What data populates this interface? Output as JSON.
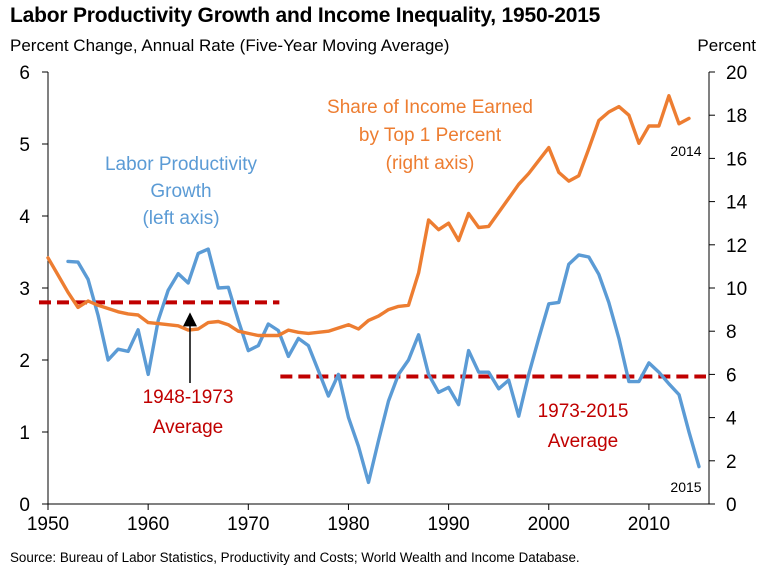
{
  "chart_data": {
    "type": "line",
    "title": "Labor Productivity Growth and Income Inequality, 1950-2015",
    "ylabel_left": "Percent Change, Annual Rate (Five-Year Moving Average)",
    "ylabel_right": "Percent",
    "source": "Source: Bureau of Labor Statistics, Productivity and Costs; World Wealth and Income Database.",
    "xlim": [
      1950,
      2016
    ],
    "ylim_left": [
      0,
      6
    ],
    "ylim_right": [
      0,
      20
    ],
    "x_ticks": [
      1950,
      1960,
      1970,
      1980,
      1990,
      2000,
      2010
    ],
    "left_ticks": [
      0,
      1,
      2,
      3,
      4,
      5,
      6
    ],
    "right_ticks": [
      0,
      2,
      4,
      6,
      8,
      10,
      12,
      14,
      16,
      18,
      20
    ],
    "colors": {
      "productivity": "#5b9bd5",
      "income_share": "#ed7d31",
      "average": "#c00000",
      "annotation": "#c00000"
    },
    "series": [
      {
        "name": "Labor Productivity Growth",
        "label_lines": [
          "Labor Productivity",
          "Growth",
          "(left axis)"
        ],
        "axis": "left",
        "x": [
          1952,
          1953,
          1954,
          1955,
          1956,
          1957,
          1958,
          1959,
          1960,
          1961,
          1962,
          1963,
          1964,
          1965,
          1966,
          1967,
          1968,
          1969,
          1970,
          1971,
          1972,
          1973,
          1974,
          1975,
          1976,
          1977,
          1978,
          1979,
          1980,
          1981,
          1982,
          1983,
          1984,
          1985,
          1986,
          1987,
          1988,
          1989,
          1990,
          1991,
          1992,
          1993,
          1994,
          1995,
          1996,
          1997,
          1998,
          1999,
          2000,
          2001,
          2002,
          2003,
          2004,
          2005,
          2006,
          2007,
          2008,
          2009,
          2010,
          2011,
          2012,
          2013,
          2014,
          2015
        ],
        "y": [
          3.37,
          3.36,
          3.12,
          2.62,
          2.0,
          2.15,
          2.12,
          2.42,
          1.8,
          2.55,
          2.97,
          3.2,
          3.07,
          3.48,
          3.54,
          3.0,
          3.01,
          2.55,
          2.13,
          2.2,
          2.5,
          2.41,
          2.05,
          2.3,
          2.2,
          1.85,
          1.5,
          1.8,
          1.2,
          0.8,
          0.3,
          0.88,
          1.43,
          1.8,
          2.0,
          2.35,
          1.8,
          1.55,
          1.62,
          1.38,
          2.13,
          1.83,
          1.83,
          1.6,
          1.72,
          1.22,
          1.8,
          2.3,
          2.78,
          2.8,
          3.33,
          3.46,
          3.43,
          3.19,
          2.8,
          2.3,
          1.7,
          1.7,
          1.96,
          1.83,
          1.67,
          1.52,
          1.0,
          0.52
        ]
      },
      {
        "name": "Share of Income Earned by Top 1 Percent",
        "label_lines": [
          "Share of Income Earned",
          "by Top 1 Percent",
          "(right axis)"
        ],
        "axis": "right",
        "x": [
          1950,
          1951,
          1952,
          1953,
          1954,
          1955,
          1956,
          1957,
          1958,
          1959,
          1960,
          1961,
          1962,
          1963,
          1964,
          1965,
          1966,
          1967,
          1968,
          1969,
          1970,
          1971,
          1972,
          1973,
          1974,
          1975,
          1976,
          1977,
          1978,
          1979,
          1980,
          1981,
          1982,
          1983,
          1984,
          1985,
          1986,
          1987,
          1988,
          1989,
          1990,
          1991,
          1992,
          1993,
          1994,
          1995,
          1996,
          1997,
          1998,
          1999,
          2000,
          2001,
          2002,
          2003,
          2004,
          2005,
          2006,
          2007,
          2008,
          2009,
          2010,
          2011,
          2012,
          2013,
          2014
        ],
        "y": [
          11.4,
          10.6,
          9.8,
          9.1,
          9.4,
          9.2,
          9.05,
          8.9,
          8.8,
          8.75,
          8.4,
          8.35,
          8.3,
          8.25,
          8.05,
          8.1,
          8.4,
          8.45,
          8.3,
          8.0,
          7.9,
          7.8,
          7.8,
          7.8,
          8.05,
          7.95,
          7.9,
          7.95,
          8.0,
          8.15,
          8.3,
          8.1,
          8.5,
          8.7,
          9.0,
          9.15,
          9.2,
          10.7,
          13.15,
          12.7,
          13.0,
          12.2,
          13.45,
          12.8,
          12.85,
          13.5,
          14.15,
          14.8,
          15.3,
          15.9,
          16.5,
          15.35,
          14.95,
          15.2,
          16.45,
          17.75,
          18.15,
          18.4,
          18.0,
          16.7,
          17.5,
          17.5,
          18.9,
          17.6,
          17.85
        ]
      }
    ],
    "averages": [
      {
        "name": "1948-1973 Average",
        "label_lines": [
          "1948-1973",
          "Average"
        ],
        "x_start": 1949.1,
        "x_end": 1973.1,
        "value": 2.8
      },
      {
        "name": "1973-2015 Average",
        "label_lines": [
          "1973-2015",
          "Average"
        ],
        "x_start": 1973.2,
        "x_end": 2015.7,
        "value": 1.77
      }
    ],
    "endpoint_labels": [
      {
        "text": "2014",
        "series": 1,
        "x": 2014,
        "y": 17.85
      },
      {
        "text": "2015",
        "series": 0,
        "x": 2015,
        "y": 0.52
      }
    ],
    "grid": false,
    "legend": "inline labels"
  }
}
